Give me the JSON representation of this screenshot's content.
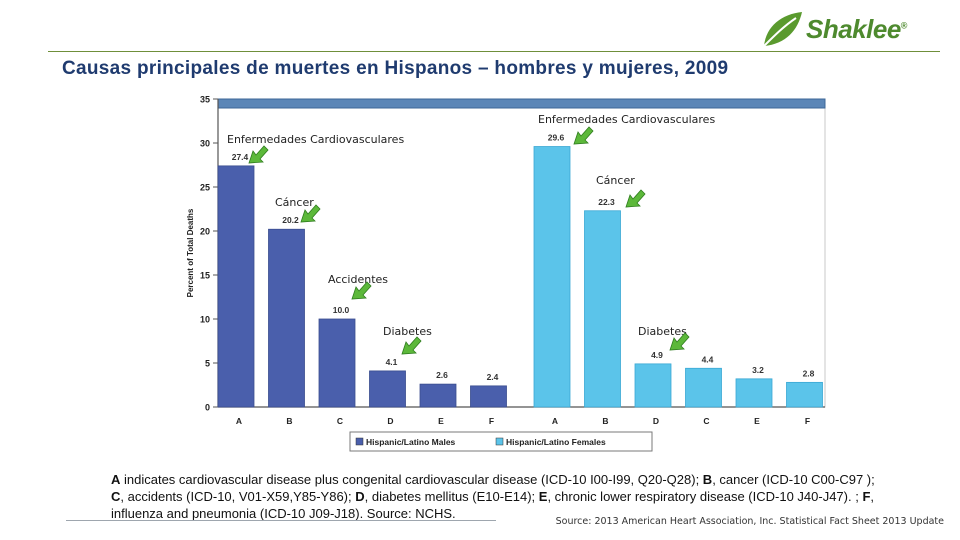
{
  "brand": {
    "name": "Shaklee",
    "mark": "®",
    "color": "#4e8a2e"
  },
  "title": "Causas principales de muertes en Hispanos – hombres y mujeres, 2009",
  "chart_data": {
    "type": "bar",
    "ylabel": "Percent of Total Deaths",
    "ylim": [
      0,
      35
    ],
    "yticks": [
      0,
      5,
      10,
      15,
      20,
      25,
      30,
      35
    ],
    "grid": false,
    "legend_position": "bottom",
    "series": [
      {
        "name": "Hispanic/Latino Males",
        "color": "#4a5fac",
        "categories": [
          "A",
          "B",
          "C",
          "D",
          "E",
          "F"
        ],
        "values": [
          27.4,
          20.2,
          10.0,
          4.1,
          2.6,
          2.4
        ],
        "value_labels": [
          "27.4",
          "20.2",
          "10.0",
          "4.1",
          "2.6",
          "2.4"
        ]
      },
      {
        "name": "Hispanic/Latino Females",
        "color": "#5bc4ea",
        "categories": [
          "A",
          "B",
          "D",
          "C",
          "E",
          "F"
        ],
        "values": [
          29.6,
          22.3,
          4.9,
          4.4,
          3.2,
          2.8
        ],
        "value_labels": [
          "29.6",
          "22.3",
          "4.9",
          "4.4",
          "3.2",
          "2.8"
        ]
      }
    ],
    "annotations": [
      {
        "text": "Enfermedades Cardiovasculares",
        "series": 0,
        "index": 0
      },
      {
        "text": "Cáncer",
        "series": 0,
        "index": 1
      },
      {
        "text": "Accidentes",
        "series": 0,
        "index": 2
      },
      {
        "text": "Diabetes",
        "series": 0,
        "index": 3
      },
      {
        "text": "Enfermedades Cardiovasculares",
        "series": 1,
        "index": 0
      },
      {
        "text": "Cáncer",
        "series": 1,
        "index": 1
      },
      {
        "text": "Diabetes",
        "series": 1,
        "index": 2
      }
    ],
    "arrow_color": "#5cb83a"
  },
  "footnote": [
    {
      "b": "A",
      "t": " indicates cardiovascular disease plus congenital cardiovascular disease (ICD-10 I00-I99, Q20-Q28); "
    },
    {
      "b": "B",
      "t": ", cancer (ICD-10 C00-C97 );"
    },
    {
      "br": true
    },
    {
      "b": "C",
      "t": ", accidents (ICD-10, V01-X59,Y85-Y86); "
    },
    {
      "b": "D",
      "t": ", diabetes mellitus (E10-E14); "
    },
    {
      "b": "E",
      "t": ", chronic lower respiratory disease (ICD-10 J40-J47). ; "
    },
    {
      "b": "F",
      "t": ","
    },
    {
      "br": true
    },
    {
      "t": "influenza and pneumonia (ICD-10 J09-J18).  Source: NCHS."
    }
  ],
  "source": "Source:  2013 American Heart Association, Inc.  Statistical Fact Sheet 2013 Update"
}
